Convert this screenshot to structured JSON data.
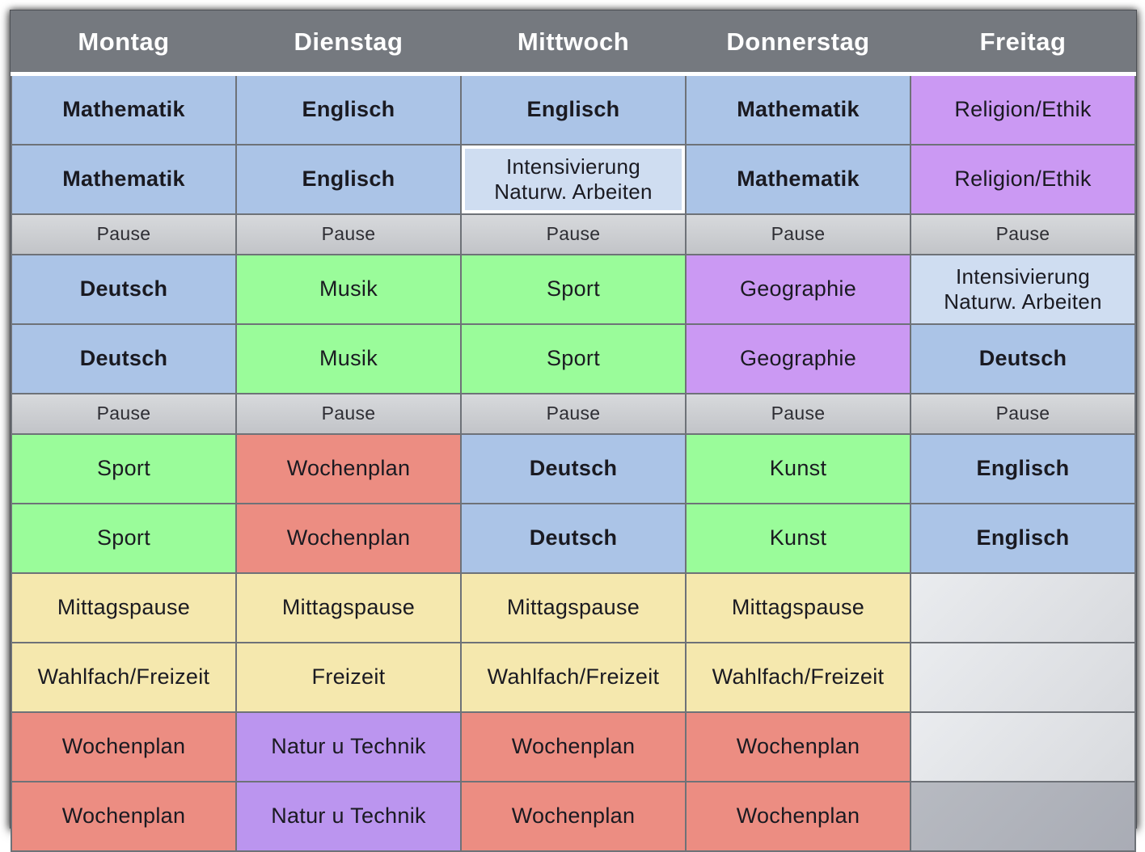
{
  "palette": {
    "header": "#75797f",
    "blue": "#abc4e7",
    "lightblue": "#cfddf1",
    "purple": "#cb99f3",
    "purple2": "#bb95ef",
    "green": "#9afc9a",
    "salmon": "#ec8d82",
    "yellow": "#f5e8ae",
    "pause": "linear-gradient(180deg,#d7d9dc,#c2c4c8)",
    "empty_light": "linear-gradient(135deg,#eaecef,#d8dade)",
    "empty_dark": "linear-gradient(135deg,#b7bac1,#a9acb5)",
    "header_text": "#ffffff",
    "cell_text": "#1a1a21"
  },
  "columns": [
    "Montag",
    "Dienstag",
    "Mittwoch",
    "Donnerstag",
    "Freitag"
  ],
  "rows": [
    {
      "cells": [
        {
          "text": "Mathematik",
          "color": "blue",
          "bold": true
        },
        {
          "text": "Englisch",
          "color": "blue",
          "bold": true
        },
        {
          "text": "Englisch",
          "color": "blue",
          "bold": true
        },
        {
          "text": "Mathematik",
          "color": "blue",
          "bold": true
        },
        {
          "text": "Religion/Ethik",
          "color": "purple",
          "bold": false
        }
      ]
    },
    {
      "cells": [
        {
          "text": "Mathematik",
          "color": "blue",
          "bold": true
        },
        {
          "text": "Englisch",
          "color": "blue",
          "bold": true
        },
        {
          "text": "Intensivierung\nNaturw. Arbeiten",
          "color": "lightblue",
          "bold": false
        },
        {
          "text": "Mathematik",
          "color": "blue",
          "bold": true
        },
        {
          "text": "Religion/Ethik",
          "color": "purple",
          "bold": false
        }
      ]
    },
    {
      "cells": [
        {
          "text": "Pause",
          "color": "pause",
          "bold": false
        },
        {
          "text": "Pause",
          "color": "pause",
          "bold": false
        },
        {
          "text": "Pause",
          "color": "pause",
          "bold": false
        },
        {
          "text": "Pause",
          "color": "pause",
          "bold": false
        },
        {
          "text": "Pause",
          "color": "pause",
          "bold": false
        }
      ]
    },
    {
      "cells": [
        {
          "text": "Deutsch",
          "color": "blue",
          "bold": true
        },
        {
          "text": "Musik",
          "color": "green",
          "bold": false
        },
        {
          "text": "Sport",
          "color": "green",
          "bold": false
        },
        {
          "text": "Geographie",
          "color": "purple",
          "bold": false
        },
        {
          "text": "Intensivierung\nNaturw. Arbeiten",
          "color": "lightblue",
          "bold": false
        }
      ]
    },
    {
      "cells": [
        {
          "text": "Deutsch",
          "color": "blue",
          "bold": true
        },
        {
          "text": "Musik",
          "color": "green",
          "bold": false
        },
        {
          "text": "Sport",
          "color": "green",
          "bold": false
        },
        {
          "text": "Geographie",
          "color": "purple",
          "bold": false
        },
        {
          "text": "Deutsch",
          "color": "blue",
          "bold": true
        }
      ]
    },
    {
      "cells": [
        {
          "text": "Pause",
          "color": "pause",
          "bold": false
        },
        {
          "text": "Pause",
          "color": "pause",
          "bold": false
        },
        {
          "text": "Pause",
          "color": "pause",
          "bold": false
        },
        {
          "text": "Pause",
          "color": "pause",
          "bold": false
        },
        {
          "text": "Pause",
          "color": "pause",
          "bold": false
        }
      ]
    },
    {
      "cells": [
        {
          "text": "Sport",
          "color": "green",
          "bold": false
        },
        {
          "text": "Wochenplan",
          "color": "salmon",
          "bold": false
        },
        {
          "text": "Deutsch",
          "color": "blue",
          "bold": true
        },
        {
          "text": "Kunst",
          "color": "green",
          "bold": false
        },
        {
          "text": "Englisch",
          "color": "blue",
          "bold": true
        }
      ]
    },
    {
      "cells": [
        {
          "text": "Sport",
          "color": "green",
          "bold": false
        },
        {
          "text": "Wochenplan",
          "color": "salmon",
          "bold": false
        },
        {
          "text": "Deutsch",
          "color": "blue",
          "bold": true
        },
        {
          "text": "Kunst",
          "color": "green",
          "bold": false
        },
        {
          "text": "Englisch",
          "color": "blue",
          "bold": true
        }
      ]
    },
    {
      "cells": [
        {
          "text": "Mittagspause",
          "color": "yellow",
          "bold": false
        },
        {
          "text": "Mittagspause",
          "color": "yellow",
          "bold": false
        },
        {
          "text": "Mittagspause",
          "color": "yellow",
          "bold": false
        },
        {
          "text": "Mittagspause",
          "color": "yellow",
          "bold": false
        },
        {
          "text": "",
          "color": "empty_light",
          "bold": false
        }
      ]
    },
    {
      "cells": [
        {
          "text": "Wahlfach/Freizeit",
          "color": "yellow",
          "bold": false
        },
        {
          "text": "Freizeit",
          "color": "yellow",
          "bold": false
        },
        {
          "text": "Wahlfach/Freizeit",
          "color": "yellow",
          "bold": false
        },
        {
          "text": "Wahlfach/Freizeit",
          "color": "yellow",
          "bold": false
        },
        {
          "text": "",
          "color": "empty_light",
          "bold": false
        }
      ]
    },
    {
      "cells": [
        {
          "text": "Wochenplan",
          "color": "salmon",
          "bold": false
        },
        {
          "text": "Natur u Technik",
          "color": "purple2",
          "bold": false
        },
        {
          "text": "Wochenplan",
          "color": "salmon",
          "bold": false
        },
        {
          "text": "Wochenplan",
          "color": "salmon",
          "bold": false
        },
        {
          "text": "",
          "color": "empty_light",
          "bold": false
        }
      ]
    },
    {
      "cells": [
        {
          "text": "Wochenplan",
          "color": "salmon",
          "bold": false
        },
        {
          "text": "Natur u Technik",
          "color": "purple2",
          "bold": false
        },
        {
          "text": "Wochenplan",
          "color": "salmon",
          "bold": false
        },
        {
          "text": "Wochenplan",
          "color": "salmon",
          "bold": false
        },
        {
          "text": "",
          "color": "empty_dark",
          "bold": false
        }
      ]
    }
  ]
}
